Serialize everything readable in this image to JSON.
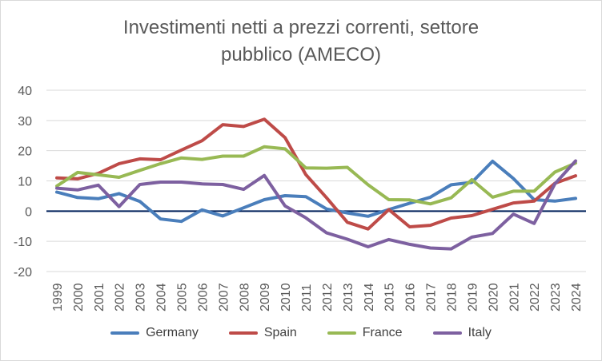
{
  "chart_data": {
    "type": "line",
    "title_line1": "Investimenti netti a prezzi correnti, settore",
    "title_line2": "pubblico (AMECO)",
    "x": [
      "1999",
      "2000",
      "2001",
      "2002",
      "2003",
      "2004",
      "2005",
      "2006",
      "2007",
      "2008",
      "2009",
      "2010",
      "2011",
      "2012",
      "2013",
      "2014",
      "2015",
      "2016",
      "2017",
      "2018",
      "2019",
      "2020",
      "2021",
      "2022",
      "2023",
      "2024"
    ],
    "ylim": [
      -20,
      40
    ],
    "yticks": [
      -20,
      -10,
      0,
      10,
      20,
      30,
      40
    ],
    "ytick_labels": [
      "-20",
      "-10",
      "0",
      "10",
      "20",
      "30",
      "40"
    ],
    "grid": "horizontal",
    "legend_position": "bottom",
    "series": [
      {
        "name": "Germany",
        "color": "#4a7ebb",
        "values": [
          6.3,
          4.5,
          4.1,
          5.8,
          3.2,
          -2.6,
          -3.4,
          0.4,
          -1.6,
          1.1,
          3.8,
          5.1,
          4.8,
          0.7,
          -0.6,
          -1.7,
          0.5,
          2.6,
          4.6,
          8.7,
          9.5,
          16.5,
          10.8,
          3.8,
          3.3,
          4.2
        ]
      },
      {
        "name": "Spain",
        "color": "#be4b48",
        "values": [
          11.0,
          10.7,
          12.5,
          15.7,
          17.3,
          17.0,
          20.2,
          23.3,
          28.6,
          28.0,
          30.4,
          24.3,
          12.1,
          4.4,
          -3.7,
          -5.9,
          0.5,
          -5.2,
          -4.7,
          -2.3,
          -1.5,
          0.6,
          2.7,
          3.3,
          9.2,
          11.7
        ]
      },
      {
        "name": "France",
        "color": "#98b954",
        "values": [
          8.3,
          12.8,
          12.0,
          11.2,
          13.5,
          15.7,
          17.6,
          17.1,
          18.2,
          18.2,
          21.3,
          20.6,
          14.3,
          14.2,
          14.5,
          8.7,
          3.8,
          3.7,
          2.4,
          4.4,
          10.4,
          4.6,
          6.6,
          6.6,
          12.9,
          15.9
        ]
      },
      {
        "name": "Italy",
        "color": "#7d60a0",
        "values": [
          7.6,
          7.0,
          8.6,
          1.5,
          8.8,
          9.6,
          9.6,
          9.0,
          8.8,
          7.2,
          11.8,
          1.7,
          -2.2,
          -7.2,
          -9.3,
          -11.8,
          -9.4,
          -11.0,
          -12.2,
          -12.5,
          -8.6,
          -7.4,
          -1.0,
          -4.1,
          9.0,
          16.6
        ]
      }
    ]
  }
}
